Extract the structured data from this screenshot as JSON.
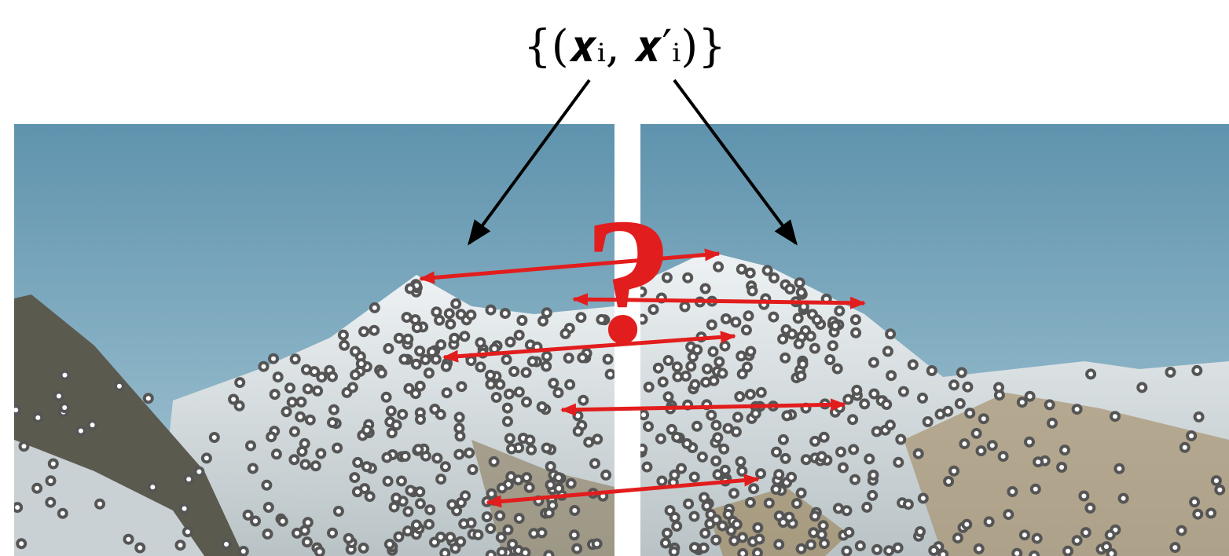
{
  "label": "{(𝒙ᵢ, 𝒙′ᵢ)}",
  "question": "?"
}
